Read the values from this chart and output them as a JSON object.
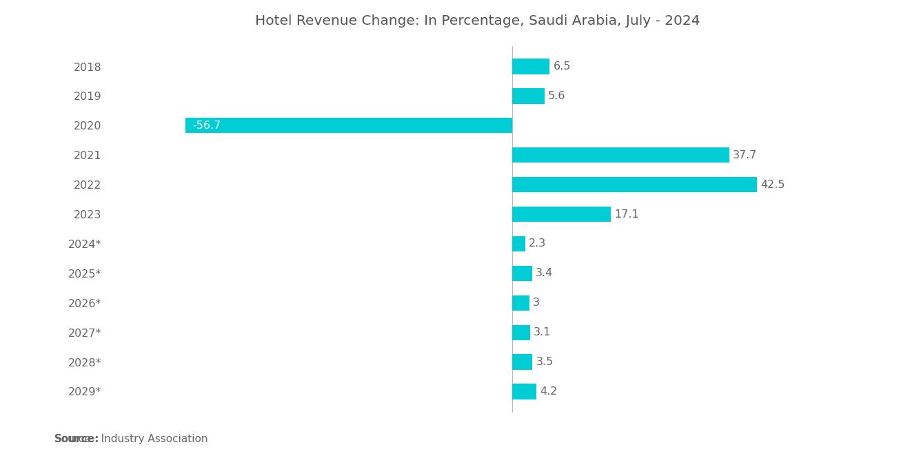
{
  "title": "Hotel Revenue Change: In Percentage, Saudi Arabia, July - 2024",
  "categories": [
    "2018",
    "2019",
    "2020",
    "2021",
    "2022",
    "2023",
    "2024*",
    "2025*",
    "2026*",
    "2027*",
    "2028*",
    "2029*"
  ],
  "values": [
    6.5,
    5.6,
    -56.7,
    37.7,
    42.5,
    17.1,
    2.3,
    3.4,
    3.0,
    3.1,
    3.5,
    4.2
  ],
  "bar_color": "#00CDD4",
  "label_color": "#666666",
  "title_color": "#555555",
  "background_color": "#ffffff",
  "source_bold": "Source:",
  "source_rest": "  Industry Association",
  "xlim": [
    -70,
    58
  ],
  "bar_height": 0.52,
  "title_fontsize": 14.5,
  "label_fontsize": 11.5,
  "tick_fontsize": 11.5,
  "source_fontsize": 11
}
